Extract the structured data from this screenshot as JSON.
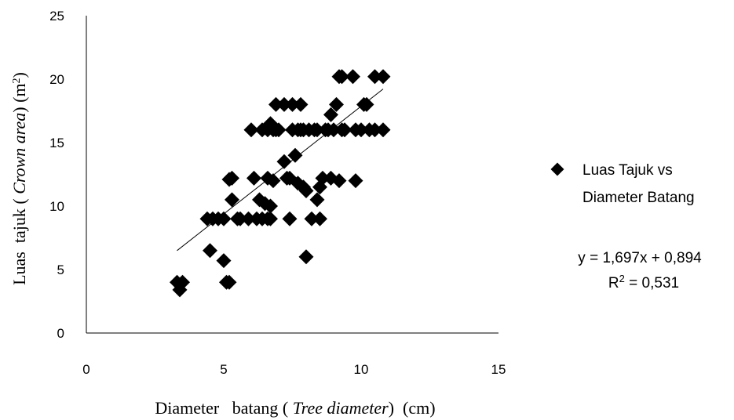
{
  "chart_data": {
    "type": "scatter",
    "xlabel": {
      "prefix": "Diameter   batang ( ",
      "italic": "Tree diameter",
      "suffix": ")  (cm)"
    },
    "ylabel": {
      "prefix": "Luas  tajuk ( ",
      "italic": "Crown area",
      "suffix": ") (m",
      "sup": "2",
      "close": ")"
    },
    "xlim": [
      0,
      15
    ],
    "ylim": [
      0,
      25
    ],
    "xticks": [
      "0",
      "5",
      "10",
      "15"
    ],
    "yticks": [
      "0",
      "5",
      "10",
      "15",
      "20",
      "25"
    ],
    "grid": false,
    "legend_position": "right",
    "series": [
      {
        "name": "Luas Tajuk vs Diameter Batang",
        "legend_lines": [
          "Luas Tajuk vs",
          "Diameter Batang"
        ],
        "marker": "diamond",
        "color": "#000000",
        "points": [
          [
            3.3,
            4.0
          ],
          [
            3.4,
            3.4
          ],
          [
            3.5,
            4.0
          ],
          [
            4.4,
            9.0
          ],
          [
            4.5,
            6.5
          ],
          [
            4.6,
            9.0
          ],
          [
            4.8,
            9.0
          ],
          [
            5.0,
            5.7
          ],
          [
            5.0,
            9.0
          ],
          [
            5.1,
            4.0
          ],
          [
            5.2,
            4.0
          ],
          [
            5.2,
            12.1
          ],
          [
            5.3,
            12.2
          ],
          [
            5.3,
            10.5
          ],
          [
            5.5,
            9.0
          ],
          [
            5.6,
            9.0
          ],
          [
            5.9,
            9.0
          ],
          [
            6.0,
            16.0
          ],
          [
            6.1,
            12.2
          ],
          [
            6.2,
            9.0
          ],
          [
            6.3,
            10.5
          ],
          [
            6.4,
            9.0
          ],
          [
            6.4,
            16.0
          ],
          [
            6.5,
            10.2
          ],
          [
            6.6,
            9.0
          ],
          [
            6.6,
            12.2
          ],
          [
            6.6,
            16.0
          ],
          [
            6.7,
            9.0
          ],
          [
            6.7,
            10.0
          ],
          [
            6.7,
            16.5
          ],
          [
            6.8,
            12.0
          ],
          [
            6.8,
            16.0
          ],
          [
            6.9,
            18.0
          ],
          [
            6.9,
            16.0
          ],
          [
            7.0,
            16.0
          ],
          [
            7.2,
            18.0
          ],
          [
            7.2,
            13.5
          ],
          [
            7.3,
            12.2
          ],
          [
            7.4,
            9.0
          ],
          [
            7.4,
            12.2
          ],
          [
            7.5,
            16.0
          ],
          [
            7.5,
            18.0
          ],
          [
            7.6,
            14.0
          ],
          [
            7.7,
            16.0
          ],
          [
            7.7,
            11.8
          ],
          [
            7.8,
            18.0
          ],
          [
            7.8,
            16.0
          ],
          [
            7.9,
            11.5
          ],
          [
            7.9,
            16.0
          ],
          [
            8.0,
            11.2
          ],
          [
            8.0,
            6.0
          ],
          [
            8.1,
            16.0
          ],
          [
            8.2,
            9.0
          ],
          [
            8.3,
            16.0
          ],
          [
            8.4,
            10.5
          ],
          [
            8.4,
            16.0
          ],
          [
            8.5,
            11.5
          ],
          [
            8.5,
            9.0
          ],
          [
            8.6,
            12.2
          ],
          [
            8.7,
            16.0
          ],
          [
            8.8,
            16.0
          ],
          [
            8.9,
            12.2
          ],
          [
            8.9,
            17.2
          ],
          [
            9.0,
            16.0
          ],
          [
            9.1,
            18.0
          ],
          [
            9.2,
            20.2
          ],
          [
            9.2,
            12.0
          ],
          [
            9.3,
            20.2
          ],
          [
            9.3,
            16.0
          ],
          [
            9.4,
            16.0
          ],
          [
            9.7,
            20.2
          ],
          [
            9.8,
            12.0
          ],
          [
            9.8,
            16.0
          ],
          [
            10.0,
            16.0
          ],
          [
            10.1,
            18.0
          ],
          [
            10.2,
            18.0
          ],
          [
            10.3,
            16.0
          ],
          [
            10.5,
            20.2
          ],
          [
            10.5,
            16.0
          ],
          [
            10.8,
            20.2
          ],
          [
            10.8,
            16.0
          ]
        ]
      }
    ],
    "trendline": {
      "x_range": [
        3.3,
        10.8
      ],
      "slope": 1.697,
      "intercept": 0.894,
      "color": "#000000"
    },
    "equation_text": "y = 1,697x + 0,894",
    "r2_label": "R",
    "r2_sup": "2",
    "r2_value": " = 0,531"
  }
}
